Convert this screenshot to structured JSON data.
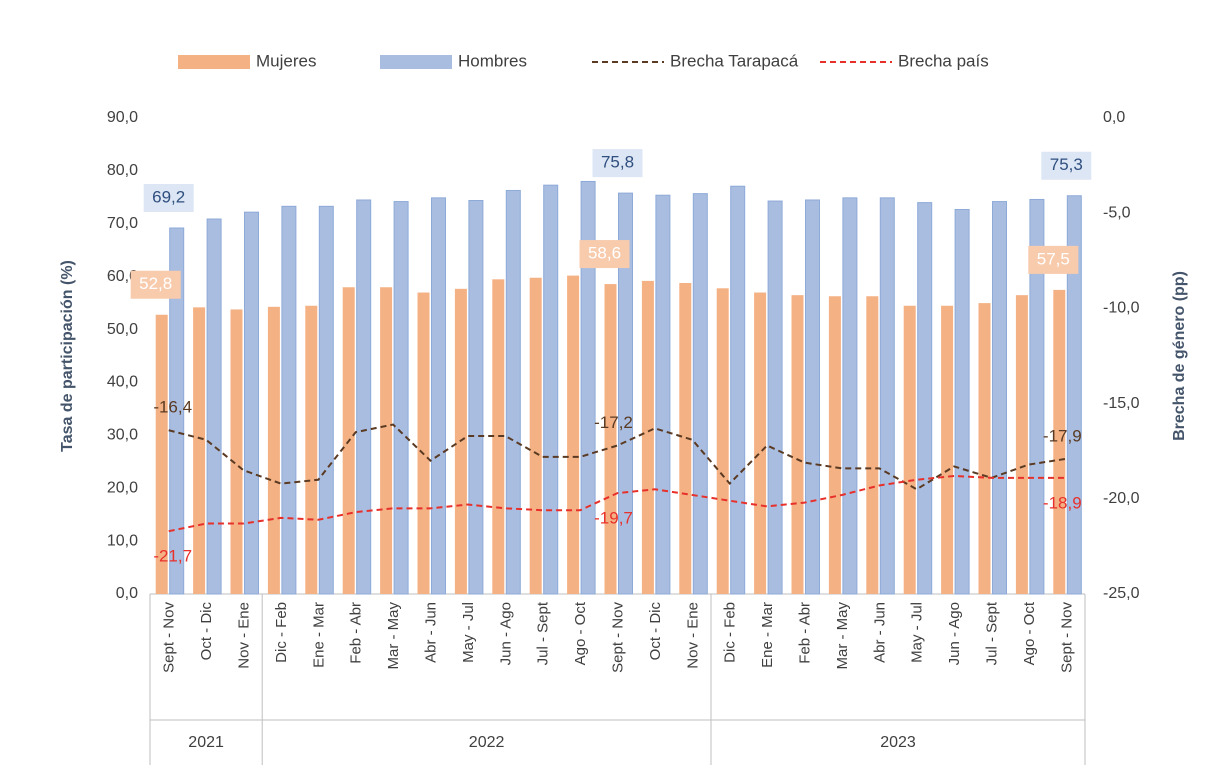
{
  "chart_data": {
    "type": "bar_line",
    "y_label": "Tasa de participación (%)",
    "y2_label": "Brecha de género (pp)",
    "categories": [
      "Sept - Nov",
      "Oct - Dic",
      "Nov - Ene",
      "Dic - Feb",
      "Ene - Mar",
      "Feb - Abr",
      "Mar - May",
      "Abr - Jun",
      "May - Jul",
      "Jun - Ago",
      "Jul - Sept",
      "Ago - Oct",
      "Sept - Nov",
      "Oct - Dic",
      "Nov - Ene",
      "Dic - Feb",
      "Ene - Mar",
      "Feb - Abr",
      "Mar - May",
      "Abr - Jun",
      "May - Jul",
      "Jun - Ago",
      "Jul - Sept",
      "Ago - Oct",
      "Sept - Nov"
    ],
    "x_groups": [
      {
        "label": "2021",
        "span": 3
      },
      {
        "label": "2022",
        "span": 12
      },
      {
        "label": "2023",
        "span": 10
      }
    ],
    "ylim": [
      0,
      90
    ],
    "yticks": [
      {
        "value": 0,
        "label": "0,0"
      },
      {
        "value": 10,
        "label": "10,0"
      },
      {
        "value": 20,
        "label": "20,0"
      },
      {
        "value": 30,
        "label": "30,0"
      },
      {
        "value": 40,
        "label": "40,0"
      },
      {
        "value": 50,
        "label": "50,0"
      },
      {
        "value": 60,
        "label": "60,0"
      },
      {
        "value": 70,
        "label": "70,0"
      },
      {
        "value": 80,
        "label": "80,0"
      },
      {
        "value": 90,
        "label": "90,0"
      }
    ],
    "y2lim": [
      -25,
      0
    ],
    "y2ticks": [
      {
        "value": -25,
        "label": "-25,0"
      },
      {
        "value": -20,
        "label": "-20,0"
      },
      {
        "value": -15,
        "label": "-15,0"
      },
      {
        "value": -10,
        "label": "-10,0"
      },
      {
        "value": -5,
        "label": "-5,0"
      },
      {
        "value": 0,
        "label": "0,0"
      }
    ],
    "series": [
      {
        "name": "Mujeres",
        "type": "bar",
        "color": "#f4b183",
        "values": [
          52.8,
          54.2,
          53.8,
          54.3,
          54.5,
          58.0,
          58.0,
          57.0,
          57.7,
          59.5,
          59.8,
          60.2,
          58.6,
          59.2,
          58.8,
          57.8,
          57.0,
          56.5,
          56.3,
          56.3,
          54.5,
          54.5,
          55.0,
          56.5,
          57.5
        ],
        "value_labels": [
          "52,8",
          null,
          null,
          null,
          null,
          null,
          null,
          null,
          null,
          null,
          null,
          null,
          "58,6",
          null,
          null,
          null,
          null,
          null,
          null,
          null,
          null,
          null,
          null,
          null,
          "57,5"
        ]
      },
      {
        "name": "Hombres",
        "type": "bar",
        "color": "#a9bde0",
        "values": [
          69.2,
          70.9,
          72.2,
          73.3,
          73.3,
          74.5,
          74.2,
          74.9,
          74.4,
          76.3,
          77.3,
          78.0,
          75.8,
          75.4,
          75.7,
          77.1,
          74.3,
          74.5,
          74.9,
          74.9,
          74.0,
          72.7,
          74.2,
          74.6,
          75.3
        ],
        "value_labels": [
          "69,2",
          null,
          null,
          null,
          null,
          null,
          null,
          null,
          null,
          null,
          null,
          null,
          "75,8",
          null,
          null,
          null,
          null,
          null,
          null,
          null,
          null,
          null,
          null,
          null,
          "75,3"
        ]
      },
      {
        "name": "Brecha Tarapacá",
        "type": "line",
        "axis": "y2",
        "line_style": "dashed",
        "color": "#5a3a22",
        "values": [
          -16.4,
          -16.9,
          -18.5,
          -19.2,
          -19.0,
          -16.5,
          -16.1,
          -18.0,
          -16.7,
          -16.7,
          -17.8,
          -17.8,
          -17.2,
          -16.3,
          -16.9,
          -19.2,
          -17.2,
          -18.1,
          -18.4,
          -18.4,
          -19.5,
          -18.3,
          -18.9,
          -18.2,
          -17.9
        ],
        "value_labels": [
          "-16,4",
          null,
          null,
          null,
          null,
          null,
          null,
          null,
          null,
          null,
          null,
          null,
          "-17,2",
          null,
          null,
          null,
          null,
          null,
          null,
          null,
          null,
          null,
          null,
          null,
          "-17,9"
        ]
      },
      {
        "name": "Brecha país",
        "type": "line",
        "axis": "y2",
        "line_style": "dashed",
        "color": "#e8302a",
        "values": [
          -21.7,
          -21.3,
          -21.3,
          -21.0,
          -21.1,
          -20.7,
          -20.5,
          -20.5,
          -20.3,
          -20.5,
          -20.6,
          -20.6,
          -19.7,
          -19.5,
          -19.8,
          -20.1,
          -20.4,
          -20.2,
          -19.8,
          -19.3,
          -19.0,
          -18.8,
          -18.9,
          -18.9,
          -18.9
        ],
        "value_labels": [
          "-21,7",
          null,
          null,
          null,
          null,
          null,
          null,
          null,
          null,
          null,
          null,
          null,
          "-19,7",
          null,
          null,
          null,
          null,
          null,
          null,
          null,
          null,
          null,
          null,
          null,
          "-18,9"
        ]
      }
    ]
  }
}
